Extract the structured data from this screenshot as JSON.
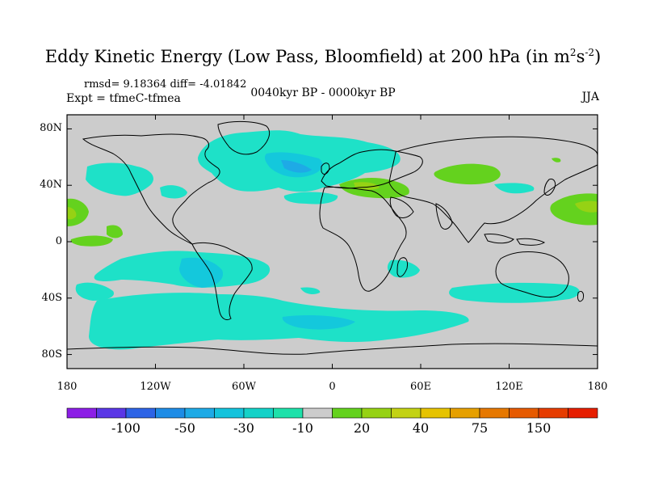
{
  "title": {
    "main": "Eddy Kinetic Energy (Low Pass, Bloomfield) at 200 hPa (in m",
    "sup1": "2",
    "mid": "s",
    "sup2": "-2",
    "close": ")"
  },
  "stats": "rmsd= 9.18364 diff= -4.01842",
  "experiment": "Expt = tfmeC-tfmea",
  "period": "0040kyr BP - 0000kyr BP",
  "season": "JJA",
  "lat_labels": [
    "80N",
    "40N",
    "0",
    "40S",
    "80S"
  ],
  "lat_values": [
    80,
    40,
    0,
    -40,
    -80
  ],
  "lon_labels": [
    "180",
    "120W",
    "60W",
    "0",
    "60E",
    "120E",
    "180"
  ],
  "lon_values": [
    -180,
    -120,
    -60,
    0,
    60,
    120,
    180
  ],
  "colorbar": {
    "colors": [
      "#8c1ee6",
      "#5a37e6",
      "#2d64e6",
      "#1e8ce6",
      "#1eaae6",
      "#14c3dc",
      "#14d2c8",
      "#1ee1aa",
      "#cccccc",
      "#64d21e",
      "#96d214",
      "#c3d214",
      "#e6c300",
      "#e6a000",
      "#e67800",
      "#e65a00",
      "#e63c00",
      "#e61e00"
    ],
    "labels": [
      "-100",
      "-50",
      "-30",
      "-10",
      "20",
      "40",
      "75",
      "150"
    ]
  },
  "colors": {
    "land_background": "#cccccc",
    "negative_light": "#1ee1c8",
    "negative_mid": "#14c8dc",
    "negative_strong": "#1eaae6",
    "positive_light": "#64d21e",
    "positive_mid": "#96d214",
    "coast": "#000000"
  }
}
